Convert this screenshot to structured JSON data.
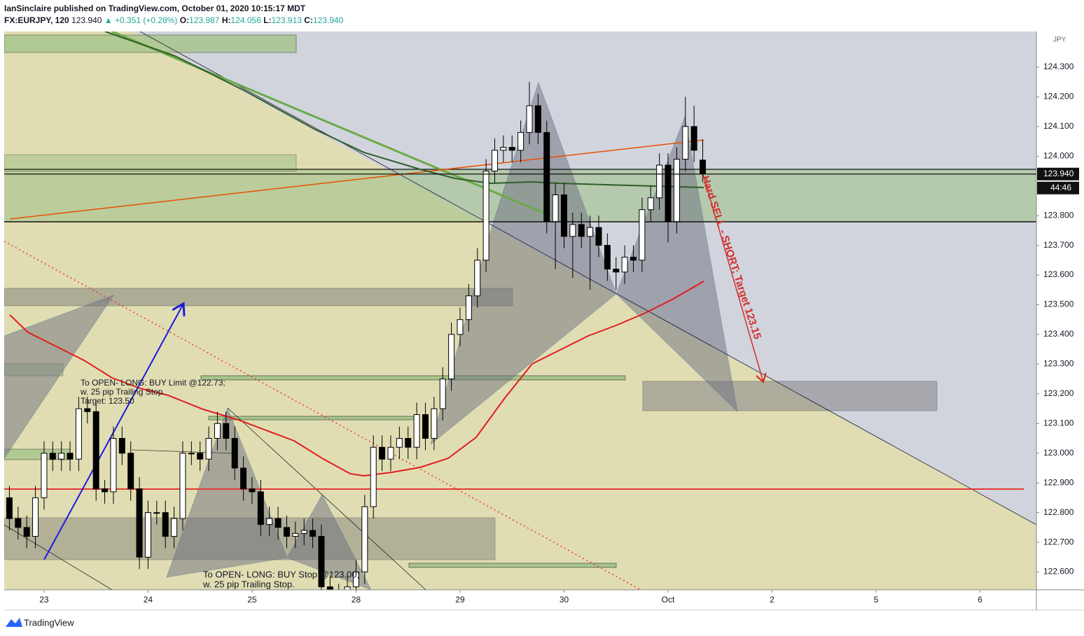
{
  "header": {
    "publisher": "IanSinclaire published on TradingView.com, October 01, 2020 10:15:17 MDT",
    "symbol": "FX:EURJPY, 120",
    "last": "123.940",
    "change": "▲ +0.351 (+0.28%)",
    "o_label": "O:",
    "h_label": "H:",
    "l_label": "L:",
    "c_label": "C:"
  },
  "chart_data": {
    "type": "candlestick",
    "x": [
      0,
      1,
      2,
      3,
      4,
      5,
      6,
      7,
      8,
      9,
      10,
      11,
      12,
      13,
      14,
      15,
      16,
      17,
      18,
      19,
      20,
      21,
      22,
      23,
      24,
      25,
      26,
      27,
      28,
      29,
      30,
      31,
      32,
      33,
      34,
      35,
      36,
      37,
      38,
      39,
      40,
      41,
      42,
      43,
      44,
      45,
      46,
      47,
      48,
      49,
      50,
      51,
      52,
      53,
      54,
      55,
      56,
      57,
      58,
      59,
      60,
      61,
      62,
      63,
      64,
      65,
      66,
      67,
      68,
      69,
      70,
      71,
      72,
      73,
      74,
      75,
      76,
      77,
      78,
      79,
      80
    ],
    "open": [
      122.85,
      122.78,
      122.75,
      122.72,
      122.85,
      123.0,
      122.98,
      123.0,
      122.98,
      123.15,
      123.14,
      122.88,
      122.87,
      123.05,
      123.0,
      122.88,
      122.65,
      122.8,
      122.8,
      122.72,
      122.78,
      123.0,
      123.0,
      122.98,
      123.05,
      123.1,
      123.05,
      122.95,
      122.88,
      122.87,
      122.76,
      122.78,
      122.75,
      122.72,
      122.73,
      122.74,
      122.72,
      122.55,
      122.5,
      122.52,
      122.55,
      122.6,
      122.82,
      123.02,
      122.98,
      123.02,
      123.05,
      123.02,
      123.13,
      123.05,
      123.15,
      123.25,
      123.4,
      123.45,
      123.53,
      123.65,
      123.95,
      124.02,
      124.03,
      124.02,
      124.08,
      124.17,
      124.08,
      123.78,
      123.87,
      123.73,
      123.77,
      123.73,
      123.76,
      123.7,
      123.62,
      123.61,
      123.66,
      123.65,
      123.82,
      123.86,
      123.97,
      123.78,
      123.99,
      124.1,
      123.987
    ],
    "high": [
      122.89,
      122.82,
      122.79,
      122.89,
      123.04,
      123.04,
      123.04,
      123.04,
      123.19,
      123.19,
      123.18,
      122.91,
      123.09,
      123.09,
      123.04,
      122.92,
      122.84,
      122.84,
      122.84,
      122.82,
      123.04,
      123.04,
      123.04,
      123.09,
      123.14,
      123.14,
      123.09,
      122.99,
      122.92,
      122.91,
      122.82,
      122.82,
      122.79,
      122.77,
      122.78,
      122.78,
      122.76,
      122.59,
      122.56,
      122.59,
      122.64,
      122.86,
      123.06,
      123.06,
      123.06,
      123.09,
      123.09,
      123.17,
      123.17,
      123.19,
      123.29,
      123.44,
      123.49,
      123.57,
      123.69,
      123.99,
      124.06,
      124.07,
      124.07,
      124.12,
      124.25,
      124.21,
      124.12,
      123.91,
      123.91,
      123.81,
      123.81,
      123.8,
      123.8,
      123.74,
      123.66,
      123.7,
      123.7,
      123.86,
      123.9,
      124.01,
      124.01,
      124.03,
      124.2,
      124.17,
      124.056
    ],
    "low": [
      122.74,
      122.71,
      122.68,
      122.68,
      122.81,
      122.94,
      122.94,
      122.94,
      122.94,
      123.1,
      122.84,
      122.83,
      122.83,
      122.96,
      122.84,
      122.61,
      122.61,
      122.76,
      122.68,
      122.68,
      122.74,
      122.96,
      122.94,
      122.94,
      123.01,
      123.01,
      122.91,
      122.84,
      122.83,
      122.72,
      122.72,
      122.71,
      122.68,
      122.68,
      122.69,
      122.68,
      122.51,
      122.46,
      122.46,
      122.48,
      122.51,
      122.56,
      122.78,
      122.94,
      122.94,
      122.98,
      122.98,
      122.98,
      123.01,
      123.01,
      123.11,
      123.21,
      123.36,
      123.41,
      123.49,
      123.61,
      123.91,
      123.98,
      123.98,
      123.98,
      124.04,
      124.04,
      123.74,
      123.62,
      123.69,
      123.59,
      123.69,
      123.55,
      123.66,
      123.58,
      123.55,
      123.57,
      123.61,
      123.61,
      123.78,
      123.82,
      123.71,
      123.74,
      123.95,
      123.98,
      123.913
    ],
    "close": [
      122.78,
      122.75,
      122.72,
      122.85,
      123.0,
      122.98,
      123.0,
      122.98,
      123.15,
      123.14,
      122.88,
      122.87,
      123.05,
      123.0,
      122.88,
      122.65,
      122.8,
      122.8,
      122.72,
      122.78,
      123.0,
      123.0,
      122.98,
      123.05,
      123.1,
      123.05,
      122.95,
      122.88,
      122.87,
      122.76,
      122.78,
      122.75,
      122.72,
      122.73,
      122.74,
      122.72,
      122.55,
      122.5,
      122.52,
      122.55,
      122.6,
      122.82,
      123.02,
      122.98,
      123.02,
      123.05,
      123.02,
      123.13,
      123.05,
      123.15,
      123.25,
      123.4,
      123.45,
      123.53,
      123.65,
      123.95,
      124.02,
      124.03,
      124.02,
      124.08,
      124.17,
      124.08,
      123.78,
      123.87,
      123.73,
      123.77,
      123.73,
      123.76,
      123.7,
      123.62,
      123.61,
      123.66,
      123.65,
      123.82,
      123.86,
      123.97,
      123.78,
      123.99,
      124.1,
      124.02,
      123.94
    ],
    "up_color": "#ffffff",
    "down_color": "#000000",
    "xlim": [
      -0.6,
      118.5
    ],
    "ylim": [
      122.54,
      124.42
    ],
    "xticks": [
      {
        "value": 4,
        "label": "23"
      },
      {
        "value": 16,
        "label": "24"
      },
      {
        "value": 28,
        "label": "25"
      },
      {
        "value": 40,
        "label": "28"
      },
      {
        "value": 52,
        "label": "29"
      },
      {
        "value": 64,
        "label": "30"
      },
      {
        "value": 76,
        "label": "Oct"
      },
      {
        "value": 88,
        "label": "2"
      },
      {
        "value": 100,
        "label": "5"
      },
      {
        "value": 112,
        "label": "6"
      }
    ],
    "yticks": [
      {
        "value": 122.6,
        "label": "122.600"
      },
      {
        "value": 122.7,
        "label": "122.700"
      },
      {
        "value": 122.8,
        "label": "122.800"
      },
      {
        "value": 122.9,
        "label": "122.900"
      },
      {
        "value": 123.0,
        "label": "123.000"
      },
      {
        "value": 123.1,
        "label": "123.100"
      },
      {
        "value": 123.2,
        "label": "123.200"
      },
      {
        "value": 123.3,
        "label": "123.300"
      },
      {
        "value": 123.4,
        "label": "123.400"
      },
      {
        "value": 123.5,
        "label": "123.500"
      },
      {
        "value": 123.6,
        "label": "123.600"
      },
      {
        "value": 123.7,
        "label": "123.700"
      },
      {
        "value": 123.8,
        "label": "123.800"
      },
      {
        "value": 123.9,
        "label": "123.900"
      },
      {
        "value": 124.0,
        "label": "124.000"
      },
      {
        "value": 124.1,
        "label": "124.100"
      },
      {
        "value": 124.2,
        "label": "124.200"
      },
      {
        "value": 124.3,
        "label": "124.300"
      }
    ],
    "axis_unit": "JPY",
    "price_tag": {
      "value": 123.94,
      "label": "123.940"
    },
    "countdown": "44:46",
    "annotations": {
      "sell": "Hard SELL - SHORT; Target 123.15",
      "long_limit": [
        "To OPEN- LONG: BUY Limit @122.73;",
        "w. 25 pip Trailing Stop.",
        "Target: 123.50"
      ],
      "long_stop": [
        "To OPEN- LONG: BUY Stop @123.00;",
        "w. 25 pip Trailing Stop."
      ]
    }
  },
  "footer": {
    "brand": "TradingView"
  }
}
